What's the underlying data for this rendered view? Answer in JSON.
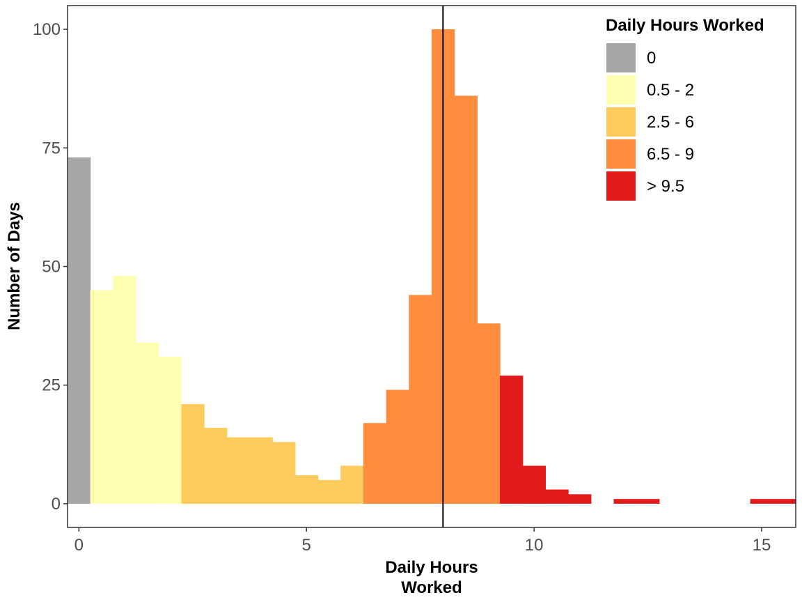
{
  "chart_data": {
    "type": "bar",
    "xlabel_lines": [
      "Daily Hours",
      "Worked"
    ],
    "ylabel": "Number of Days",
    "xlim": [
      -0.25,
      15.75
    ],
    "ylim": [
      -5,
      105
    ],
    "xticks": [
      0,
      5,
      10,
      15
    ],
    "yticks": [
      0,
      25,
      50,
      75,
      100
    ],
    "grid": false,
    "bin_width": 0.5,
    "vline_x": 8,
    "legend": {
      "title": "Daily Hours Worked",
      "placement": "top-right",
      "entries": [
        {
          "label": "0",
          "color": "#A6A6A6"
        },
        {
          "label": "0.5 - 2",
          "color": "#FFFFB2"
        },
        {
          "label": "2.5 - 6",
          "color": "#FECC5C"
        },
        {
          "label": "6.5 - 9",
          "color": "#FD8D3C"
        },
        {
          "label": "> 9.5",
          "color": "#E31A1C"
        }
      ]
    },
    "bins": [
      {
        "x": 0,
        "count": 73,
        "group": 0
      },
      {
        "x": 0.5,
        "count": 45,
        "group": 1
      },
      {
        "x": 1,
        "count": 48,
        "group": 1
      },
      {
        "x": 1.5,
        "count": 34,
        "group": 1
      },
      {
        "x": 2,
        "count": 31,
        "group": 1
      },
      {
        "x": 2.5,
        "count": 21,
        "group": 2
      },
      {
        "x": 3,
        "count": 16,
        "group": 2
      },
      {
        "x": 3.5,
        "count": 14,
        "group": 2
      },
      {
        "x": 4,
        "count": 14,
        "group": 2
      },
      {
        "x": 4.5,
        "count": 13,
        "group": 2
      },
      {
        "x": 5,
        "count": 6,
        "group": 2
      },
      {
        "x": 5.5,
        "count": 5,
        "group": 2
      },
      {
        "x": 6,
        "count": 8,
        "group": 2
      },
      {
        "x": 6.5,
        "count": 17,
        "group": 3
      },
      {
        "x": 7,
        "count": 24,
        "group": 3
      },
      {
        "x": 7.5,
        "count": 44,
        "group": 3
      },
      {
        "x": 8,
        "count": 100,
        "group": 3
      },
      {
        "x": 8.5,
        "count": 86,
        "group": 3
      },
      {
        "x": 9,
        "count": 38,
        "group": 3
      },
      {
        "x": 9.5,
        "count": 27,
        "group": 4
      },
      {
        "x": 10,
        "count": 8,
        "group": 4
      },
      {
        "x": 10.5,
        "count": 3,
        "group": 4
      },
      {
        "x": 11,
        "count": 2,
        "group": 4
      },
      {
        "x": 12,
        "count": 1,
        "group": 4
      },
      {
        "x": 12.5,
        "count": 1,
        "group": 4
      },
      {
        "x": 15,
        "count": 1,
        "group": 4
      },
      {
        "x": 15.5,
        "count": 1,
        "group": 4
      }
    ]
  }
}
